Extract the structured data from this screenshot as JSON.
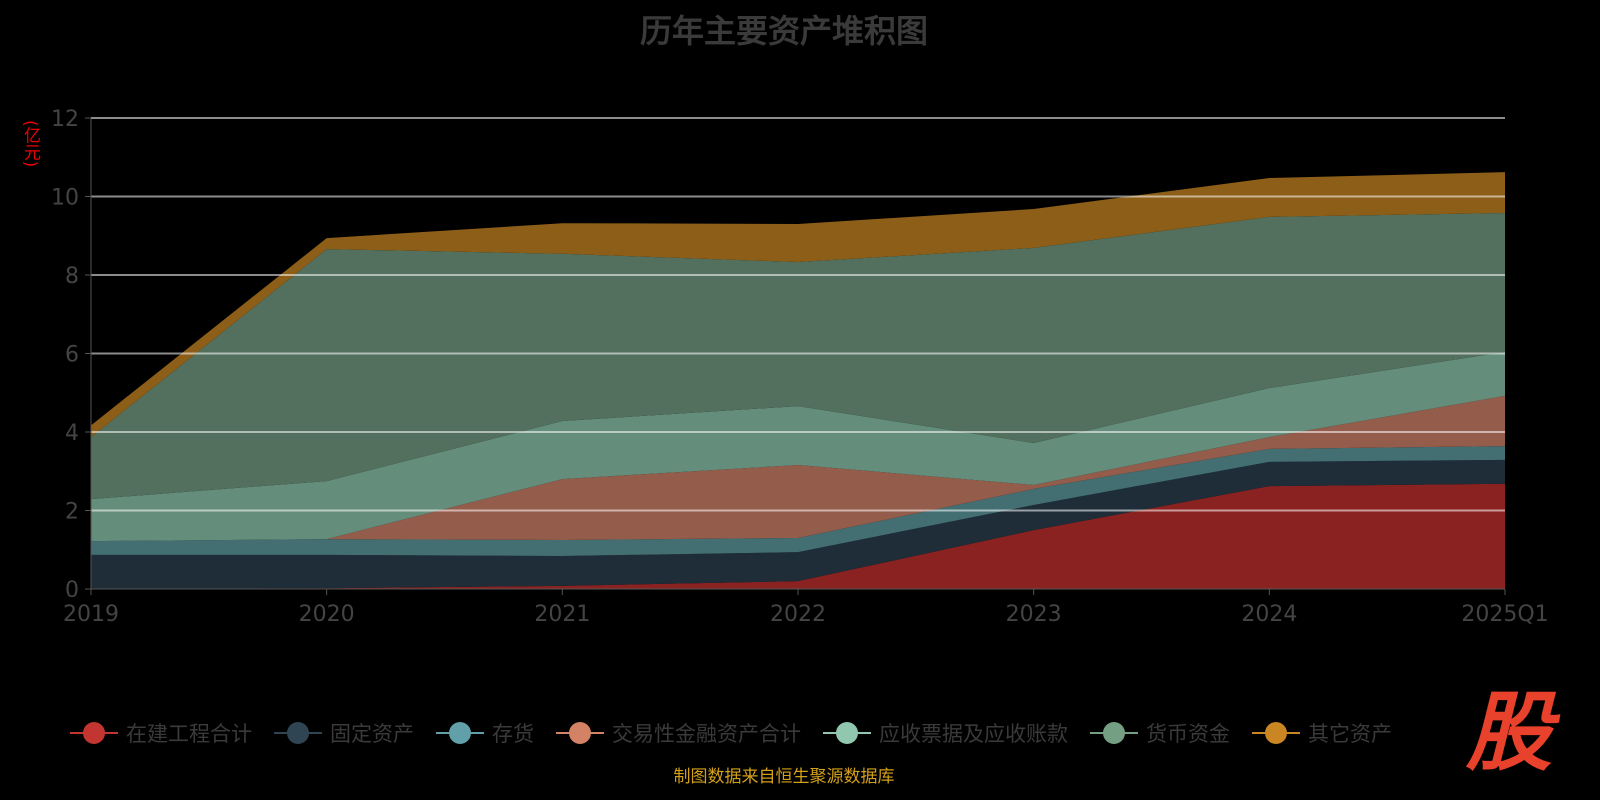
{
  "chart_data": {
    "type": "area",
    "stacked": true,
    "title": "历年主要资产堆积图",
    "ylabel": "(亿元)",
    "ylim": [
      0,
      12
    ],
    "yticks": [
      0,
      2,
      4,
      6,
      8,
      10,
      12
    ],
    "categories": [
      "2019",
      "2020",
      "2021",
      "2022",
      "2023",
      "2024",
      "2025Q1"
    ],
    "series": [
      {
        "name": "在建工程合计",
        "fill": "#8a2222",
        "color": "#c23531",
        "values": [
          0.0,
          0.02,
          0.08,
          0.2,
          1.5,
          2.62,
          2.68
        ]
      },
      {
        "name": "固定资产",
        "fill": "#1f2d38",
        "color": "#2f4554",
        "values": [
          0.87,
          0.85,
          0.76,
          0.74,
          0.64,
          0.62,
          0.61
        ]
      },
      {
        "name": "存货",
        "fill": "#436f73",
        "color": "#61a0a8",
        "values": [
          0.35,
          0.4,
          0.41,
          0.36,
          0.41,
          0.33,
          0.35
        ]
      },
      {
        "name": "交易性金融资产合计",
        "fill": "#945c4a",
        "color": "#d48265",
        "values": [
          0.0,
          0.0,
          1.55,
          1.86,
          0.1,
          0.3,
          1.28
        ]
      },
      {
        "name": "应收票据及应收账款",
        "fill": "#658d7b",
        "color": "#91c7ae",
        "values": [
          1.07,
          1.48,
          1.48,
          1.5,
          1.07,
          1.25,
          1.12
        ]
      },
      {
        "name": "货币资金",
        "fill": "#52705d",
        "color": "#749f83",
        "values": [
          1.58,
          5.91,
          4.26,
          3.67,
          4.97,
          4.36,
          3.54
        ]
      },
      {
        "name": "其它资产",
        "fill": "#8c5e18",
        "color": "#ca8622",
        "values": [
          0.3,
          0.28,
          0.78,
          0.97,
          0.99,
          0.99,
          1.04
        ]
      }
    ],
    "legend": "bottom",
    "grid": true
  },
  "footer": "制图数据来自恒生聚源数据库",
  "logo_text": "股"
}
